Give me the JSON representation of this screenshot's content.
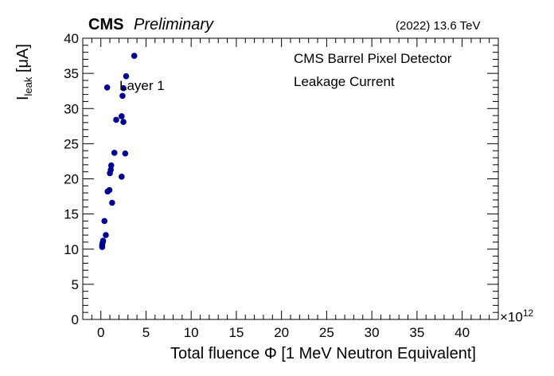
{
  "header": {
    "cms": "CMS",
    "preliminary": "Preliminary",
    "energy": "(2022) 13.6 TeV"
  },
  "annotations": {
    "detector": "CMS Barrel Pixel Detector",
    "quantity": "Leakage Current",
    "layer": "Layer 1"
  },
  "colors": {
    "marker": "#00008b",
    "axis": "#000000"
  },
  "chart_data": {
    "type": "scatter",
    "xlabel": "Total fluence Φ [1 MeV Neutron Equivalent]",
    "x_multiplier": "×10",
    "x_multiplier_exp": "12",
    "ylabel": "I",
    "ylabel_sub": "leak",
    "ylabel_unit": " [μA]",
    "xlim": [
      -2,
      44
    ],
    "ylim": [
      0,
      40
    ],
    "x_ticks": [
      0,
      5,
      10,
      15,
      20,
      25,
      30,
      35,
      40
    ],
    "y_ticks": [
      0,
      5,
      10,
      15,
      20,
      25,
      30,
      35,
      40
    ],
    "grid": false,
    "points": [
      {
        "x": 0.15,
        "y": 10.3
      },
      {
        "x": 0.15,
        "y": 10.6
      },
      {
        "x": 0.2,
        "y": 10.9
      },
      {
        "x": 0.25,
        "y": 11.2
      },
      {
        "x": 0.55,
        "y": 12.0
      },
      {
        "x": 0.4,
        "y": 14.0
      },
      {
        "x": 1.25,
        "y": 16.6
      },
      {
        "x": 0.75,
        "y": 18.2
      },
      {
        "x": 0.95,
        "y": 18.4
      },
      {
        "x": 1.0,
        "y": 20.8
      },
      {
        "x": 1.1,
        "y": 21.3
      },
      {
        "x": 1.15,
        "y": 21.9
      },
      {
        "x": 1.5,
        "y": 23.7
      },
      {
        "x": 2.7,
        "y": 23.6
      },
      {
        "x": 2.3,
        "y": 20.3
      },
      {
        "x": 2.5,
        "y": 28.1
      },
      {
        "x": 2.3,
        "y": 28.9
      },
      {
        "x": 1.7,
        "y": 28.4
      },
      {
        "x": 2.4,
        "y": 31.8
      },
      {
        "x": 2.5,
        "y": 32.9
      },
      {
        "x": 0.7,
        "y": 33.0
      },
      {
        "x": 2.8,
        "y": 34.6
      },
      {
        "x": 3.7,
        "y": 37.5
      }
    ]
  }
}
